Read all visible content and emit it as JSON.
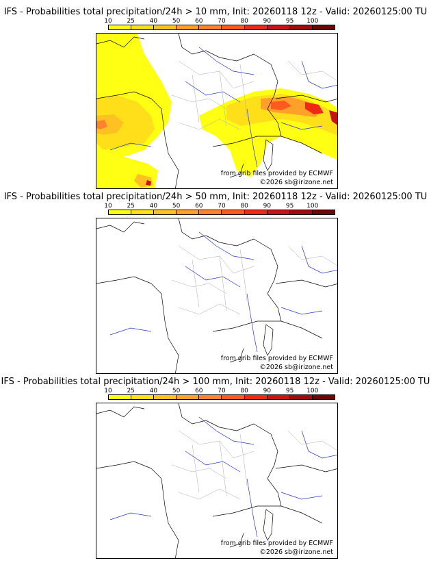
{
  "colorbar": {
    "ticks": [
      "10",
      "25",
      "40",
      "50",
      "60",
      "70",
      "80",
      "90",
      "95",
      "100"
    ],
    "colors": [
      "#ffff14",
      "#ffde1a",
      "#ffc021",
      "#ffa028",
      "#ff8230",
      "#ff5a1e",
      "#ee2a12",
      "#c81414",
      "#9e0c0c",
      "#6e0606"
    ]
  },
  "panels": [
    {
      "title": "IFS - Probabilities total precipitation/24h > 10 mm, Init: 20260118 12z - Valid: 20260125:00 TU",
      "credit_source": "from grib files provided by ECMWF",
      "credit_copyright": "©2026 sb@irizone.net"
    },
    {
      "title": "IFS - Probabilities total precipitation/24h > 50 mm, Init: 20260118 12z - Valid: 20260125:00 TU",
      "credit_source": "from grib files provided by ECMWF",
      "credit_copyright": "©2026 sb@irizone.net"
    },
    {
      "title": "IFS - Probabilities total precipitation/24h > 100 mm, Init: 20260118 12z - Valid: 20260125:00 TU",
      "credit_source": "from grib files provided by ECMWF",
      "credit_copyright": "©2026 sb@irizone.net"
    }
  ]
}
